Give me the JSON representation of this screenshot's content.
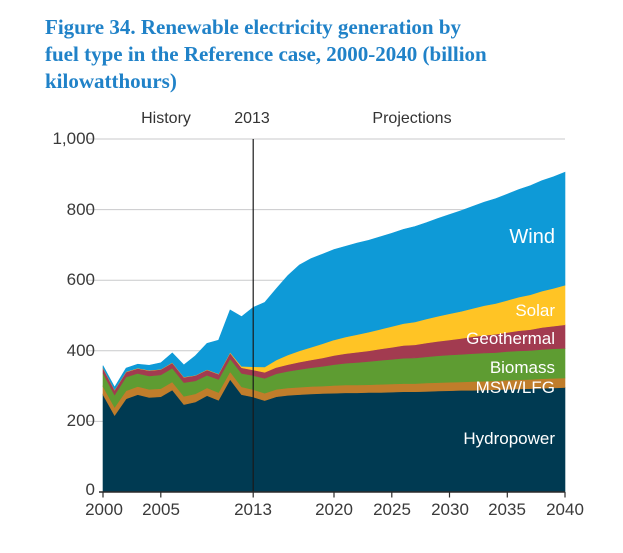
{
  "title": "Figure 34. Renewable electricity generation by fuel type in the Reference case, 2000-2040 (billion kilowatthours)",
  "title_lines": [
    "Figure 34. Renewable electricity generation by",
    "fuel type in the Reference case, 2000-2040 (billion",
    "kilowatthours)"
  ],
  "title_color": "#2082C8",
  "header": {
    "history": "History",
    "divider": "2013",
    "projections": "Projections"
  },
  "chart_data": {
    "type": "area",
    "stacked": true,
    "title": "Figure 34. Renewable electricity generation by fuel type in the Reference case, 2000-2040 (billion kilowatthours)",
    "units": "billion kilowatthours",
    "grid": true,
    "ylim": [
      0,
      1000
    ],
    "xlim": [
      2000,
      2040
    ],
    "divider_year": 2013,
    "yticks": [
      "0",
      "200",
      "400",
      "600",
      "800",
      "1,000"
    ],
    "ytick_values": [
      0,
      200,
      400,
      600,
      800,
      1000
    ],
    "xticks": [
      "2000",
      "2005",
      "2013",
      "2020",
      "2025",
      "2030",
      "2035",
      "2040"
    ],
    "xtick_years": [
      2000,
      2005,
      2013,
      2020,
      2025,
      2030,
      2035,
      2040
    ],
    "colors": {
      "grid": "#C9CACB",
      "axis": "#2B2B2B",
      "divider_line": "#1A1A1A"
    },
    "x": [
      2000,
      2001,
      2002,
      2003,
      2004,
      2005,
      2006,
      2007,
      2008,
      2009,
      2010,
      2011,
      2012,
      2013,
      2014,
      2015,
      2016,
      2017,
      2018,
      2019,
      2020,
      2021,
      2022,
      2023,
      2024,
      2025,
      2026,
      2027,
      2028,
      2029,
      2030,
      2031,
      2032,
      2033,
      2034,
      2035,
      2036,
      2037,
      2038,
      2039,
      2040
    ],
    "series": [
      {
        "name": "Hydropower",
        "color": "#003A52",
        "values": [
          276,
          217,
          264,
          276,
          268,
          270,
          289,
          248,
          255,
          273,
          260,
          319,
          276,
          269,
          259,
          270,
          274,
          276,
          278,
          279,
          280,
          281,
          281,
          282,
          282,
          283,
          284,
          284,
          285,
          286,
          287,
          288,
          288,
          289,
          290,
          291,
          292,
          293,
          294,
          295,
          296
        ]
      },
      {
        "name": "MSW/LFG",
        "color": "#C07D2B",
        "values": [
          23,
          23,
          23,
          23,
          23,
          23,
          23,
          23,
          23,
          22,
          22,
          22,
          22,
          21,
          21,
          21,
          21,
          21,
          21,
          21,
          22,
          22,
          22,
          22,
          23,
          23,
          23,
          23,
          24,
          24,
          24,
          24,
          25,
          25,
          25,
          26,
          26,
          26,
          27,
          27,
          27
        ]
      },
      {
        "name": "Biomass",
        "color": "#5E9C32",
        "values": [
          38,
          35,
          39,
          37,
          38,
          39,
          39,
          39,
          37,
          36,
          37,
          37,
          38,
          40,
          42,
          44,
          47,
          50,
          53,
          56,
          59,
          62,
          64,
          66,
          68,
          70,
          72,
          73,
          74,
          76,
          77,
          78,
          79,
          80,
          80,
          81,
          82,
          82,
          83,
          84,
          84
        ]
      },
      {
        "name": "Geothermal",
        "color": "#A23B50",
        "values": [
          14,
          14,
          14,
          14,
          15,
          15,
          15,
          15,
          15,
          15,
          15,
          16,
          16,
          16,
          17,
          18,
          19,
          21,
          22,
          24,
          26,
          27,
          29,
          30,
          32,
          34,
          36,
          37,
          39,
          41,
          43,
          45,
          48,
          50,
          52,
          54,
          57,
          59,
          62,
          64,
          67
        ]
      },
      {
        "name": "Solar",
        "color": "#FFC425",
        "values": [
          1,
          1,
          1,
          1,
          1,
          1,
          1,
          1,
          1,
          1,
          1,
          2,
          4,
          9,
          15,
          21,
          27,
          32,
          36,
          40,
          44,
          47,
          50,
          53,
          56,
          59,
          62,
          65,
          68,
          71,
          74,
          77,
          80,
          84,
          87,
          91,
          95,
          99,
          103,
          107,
          112
        ]
      },
      {
        "name": "Wind",
        "color": "#0E9AD7",
        "values": [
          6,
          7,
          10,
          11,
          14,
          18,
          27,
          34,
          55,
          74,
          95,
          120,
          141,
          168,
          183,
          202,
          225,
          243,
          251,
          254,
          256,
          257,
          259,
          260,
          262,
          264,
          267,
          270,
          273,
          277,
          281,
          285,
          289,
          293,
          297,
          301,
          305,
          309,
          313,
          316,
          320
        ]
      }
    ]
  }
}
